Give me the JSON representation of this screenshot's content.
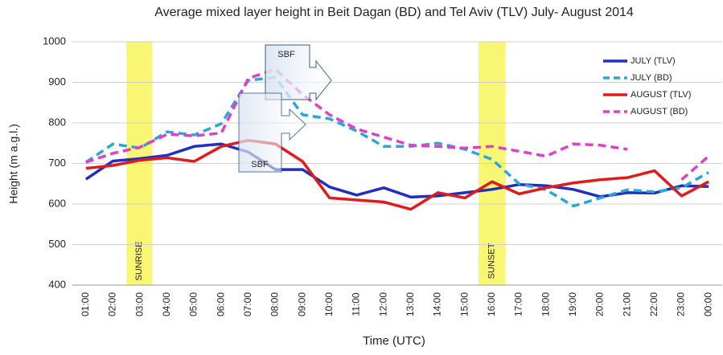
{
  "chart_data": {
    "type": "line",
    "title": "Average mixed layer height in Beit Dagan (BD) and Tel Aviv (TLV)  July- August 2014",
    "x_label": "Time (UTC)",
    "y_label": "Height (m a.g.l.)",
    "categories": [
      "01:00",
      "02:00",
      "03:00",
      "04:00",
      "05:00",
      "06:00",
      "07:00",
      "08:00",
      "09:00",
      "10:00",
      "11:00",
      "12:00",
      "13:00",
      "14:00",
      "15:00",
      "16:00",
      "17:00",
      "18:00",
      "19:00",
      "20:00",
      "21:00",
      "22:00",
      "23:00",
      "00:00"
    ],
    "series": [
      {
        "name": "JULY (TLV)",
        "color": "#1f2fc0",
        "dashed": false,
        "values": [
          661,
          706,
          712,
          720,
          742,
          748,
          728,
          685,
          685,
          642,
          622,
          640,
          617,
          620,
          628,
          636,
          648,
          645,
          636,
          618,
          628,
          627,
          645,
          643
        ]
      },
      {
        "name": "JULY (BD)",
        "color": "#2aa7d8",
        "dashed": true,
        "values": [
          703,
          748,
          738,
          778,
          770,
          798,
          905,
          912,
          820,
          810,
          780,
          742,
          742,
          750,
          735,
          710,
          650,
          635,
          595,
          615,
          635,
          630,
          640,
          678
        ]
      },
      {
        "name": "AUGUST (TLV)",
        "color": "#e01b1b",
        "dashed": false,
        "values": [
          688,
          695,
          708,
          714,
          705,
          742,
          757,
          748,
          705,
          615,
          610,
          605,
          587,
          628,
          615,
          655,
          625,
          640,
          652,
          660,
          665,
          682,
          620,
          655
        ]
      },
      {
        "name": "AUGUST (BD)",
        "color": "#e040c8",
        "dashed": true,
        "values": [
          703,
          725,
          740,
          772,
          768,
          775,
          910,
          932,
          870,
          820,
          785,
          765,
          745,
          742,
          738,
          742,
          730,
          718,
          748,
          745,
          735,
          null,
          660,
          718
        ]
      }
    ],
    "ylim": [
      400,
      1000
    ],
    "yticks": [
      400,
      500,
      600,
      700,
      800,
      900,
      1000
    ],
    "grid": true,
    "annotations": {
      "sunrise": "SUNRISE",
      "sunset": "SUNSET",
      "sbf_upper": "SBF",
      "sbf_lower": "SBF"
    }
  }
}
